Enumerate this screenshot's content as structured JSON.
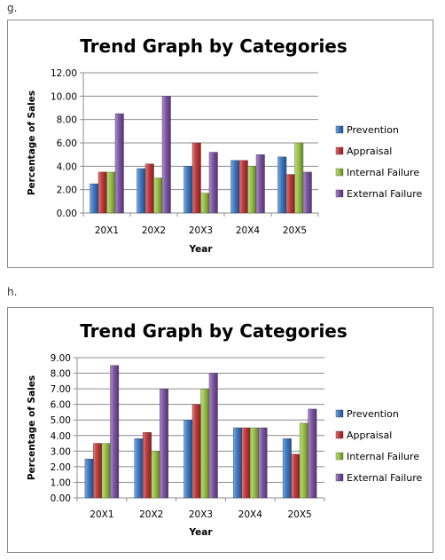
{
  "sections": [
    {
      "label": "g."
    },
    {
      "label": "h."
    }
  ],
  "series_colors": [
    "#3c78c3",
    "#c0393b",
    "#98c246",
    "#7d55a5"
  ],
  "chart_data": [
    {
      "type": "bar",
      "title": "Trend Graph by Categories",
      "xlabel": "Year",
      "ylabel": "Percentage of Sales",
      "categories": [
        "20X1",
        "20X2",
        "20X3",
        "20X4",
        "20X5"
      ],
      "ylim": [
        0,
        12
      ],
      "ytick_step": 2,
      "ytick_labels": [
        "0.00",
        "2.00",
        "4.00",
        "6.00",
        "8.00",
        "10.00",
        "12.00"
      ],
      "grid": true,
      "legend": "right",
      "series": [
        {
          "name": "Prevention",
          "values": [
            2.5,
            3.8,
            4.0,
            4.5,
            4.8
          ]
        },
        {
          "name": "Appraisal",
          "values": [
            3.5,
            4.2,
            6.0,
            4.5,
            3.3
          ]
        },
        {
          "name": "Internal Failure",
          "values": [
            3.5,
            3.0,
            1.7,
            4.0,
            6.0
          ]
        },
        {
          "name": "External Failure",
          "values": [
            8.5,
            10.0,
            5.2,
            5.0,
            3.5
          ]
        }
      ]
    },
    {
      "type": "bar",
      "title": "Trend Graph by Categories",
      "xlabel": "Year",
      "ylabel": "Percentage of Sales",
      "categories": [
        "20X1",
        "20X2",
        "20X3",
        "20X4",
        "20X5"
      ],
      "ylim": [
        0,
        9
      ],
      "ytick_step": 1,
      "ytick_labels": [
        "0.00",
        "1.00",
        "2.00",
        "3.00",
        "4.00",
        "5.00",
        "6.00",
        "7.00",
        "8.00",
        "9.00"
      ],
      "grid": true,
      "legend": "right",
      "series": [
        {
          "name": "Prevention",
          "values": [
            2.5,
            3.8,
            5.0,
            4.5,
            3.8
          ]
        },
        {
          "name": "Appraisal",
          "values": [
            3.5,
            4.2,
            6.0,
            4.5,
            2.8
          ]
        },
        {
          "name": "Internal Failure",
          "values": [
            3.5,
            3.0,
            7.0,
            4.5,
            4.8
          ]
        },
        {
          "name": "External Failure",
          "values": [
            8.5,
            7.0,
            8.0,
            4.5,
            5.7
          ]
        }
      ]
    }
  ]
}
